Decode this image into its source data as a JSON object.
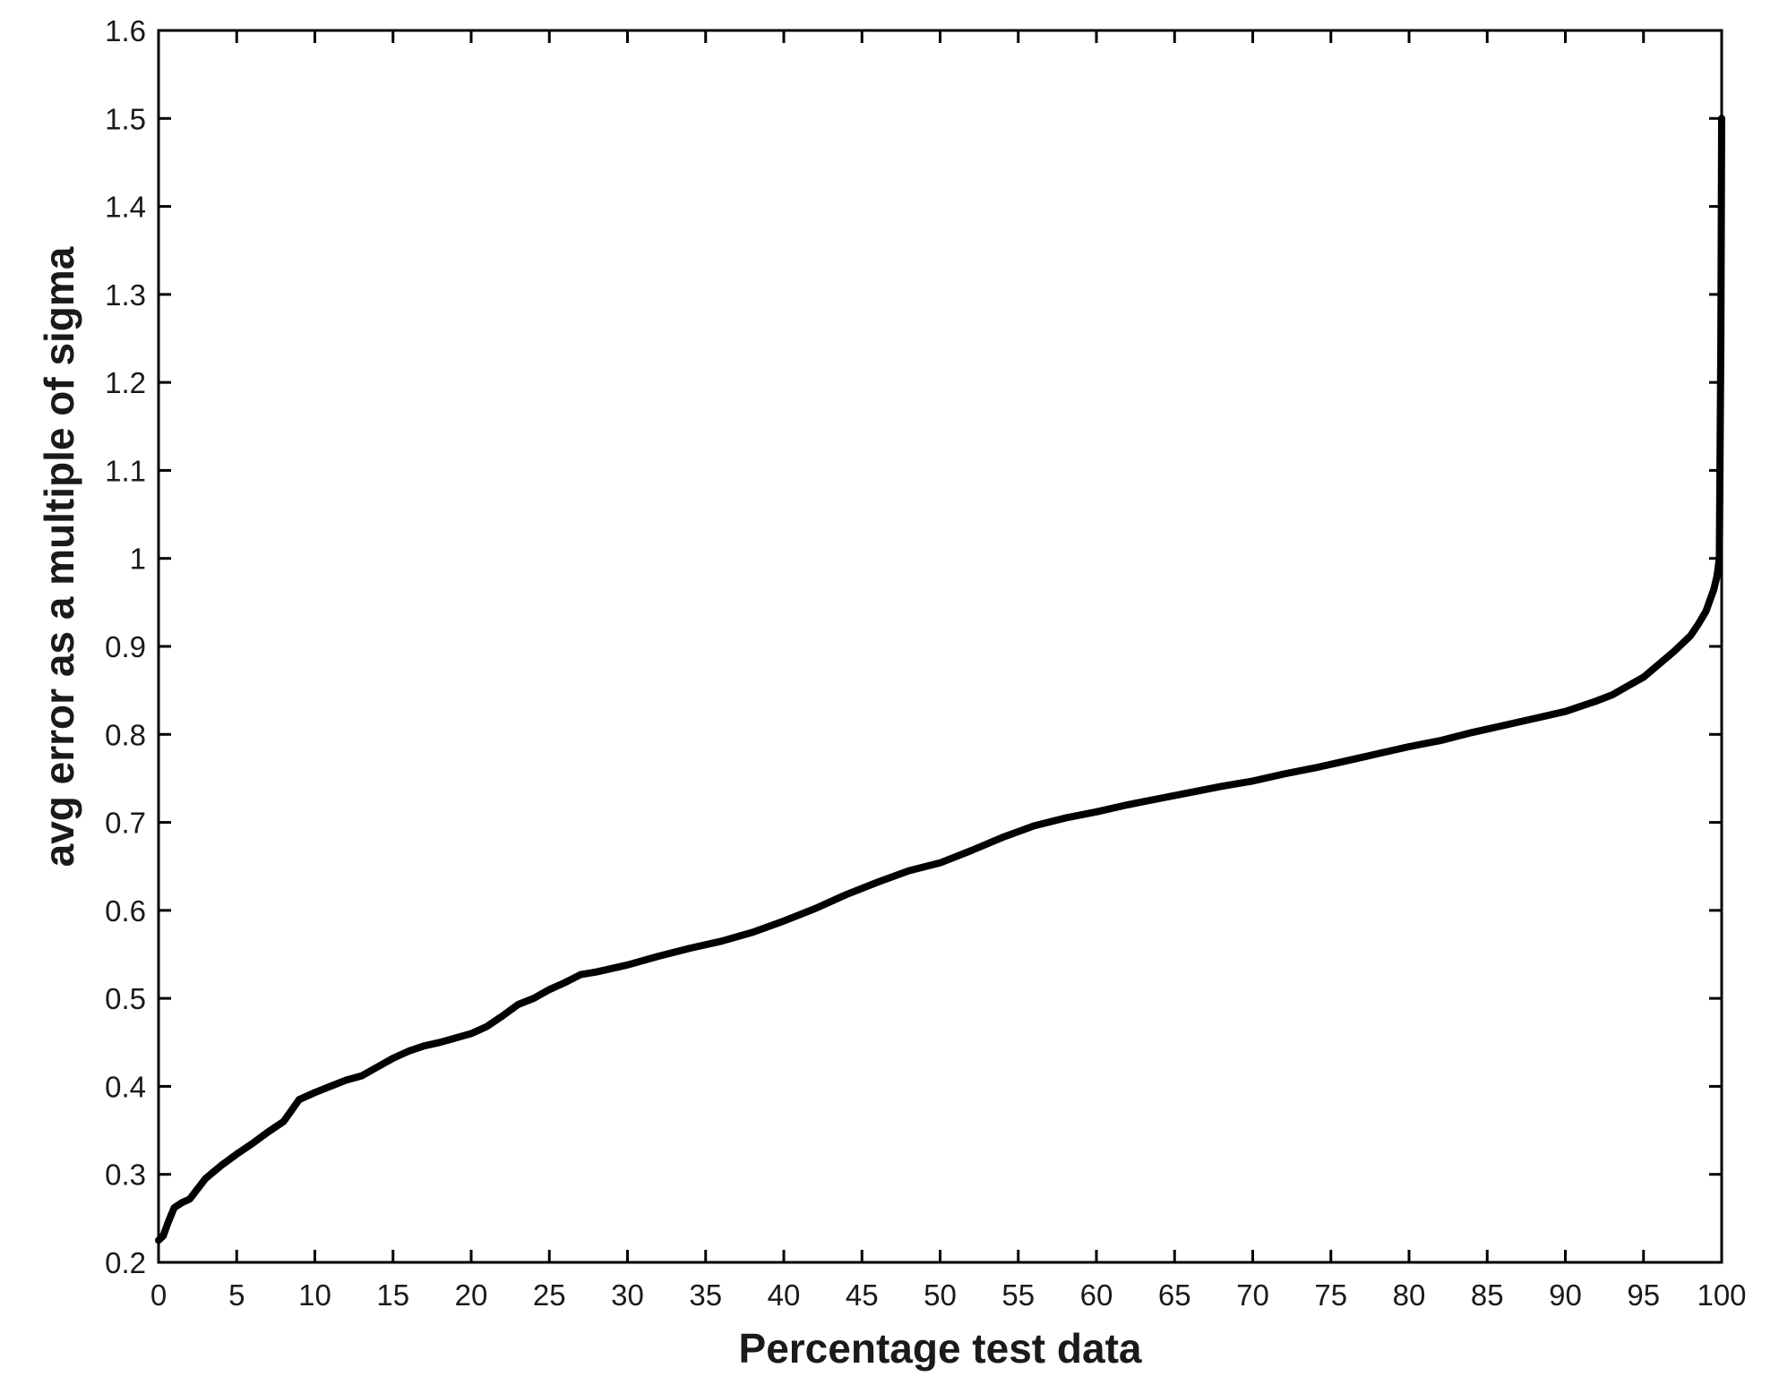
{
  "chart_data": {
    "type": "line",
    "title": "",
    "xlabel": "Percentage test data",
    "ylabel": "avg error as a multiple of sigma",
    "xlim": [
      0,
      100
    ],
    "ylim": [
      0.2,
      1.6
    ],
    "xticks": [
      0,
      5,
      10,
      15,
      20,
      25,
      30,
      35,
      40,
      45,
      50,
      55,
      60,
      65,
      70,
      75,
      80,
      85,
      90,
      95,
      100
    ],
    "yticks": [
      0.2,
      0.3,
      0.4,
      0.5,
      0.6,
      0.7,
      0.8,
      0.9,
      1,
      1.1,
      1.2,
      1.3,
      1.4,
      1.5,
      1.6
    ],
    "xtick_labels": [
      "0",
      "5",
      "10",
      "15",
      "20",
      "25",
      "30",
      "35",
      "40",
      "45",
      "50",
      "55",
      "60",
      "65",
      "70",
      "75",
      "80",
      "85",
      "90",
      "95",
      "100"
    ],
    "ytick_labels": [
      "0.2",
      "0.3",
      "0.4",
      "0.5",
      "0.6",
      "0.7",
      "0.8",
      "0.9",
      "1",
      "1.1",
      "1.2",
      "1.3",
      "1.4",
      "1.5",
      "1.6"
    ],
    "grid": false,
    "line_color": "#000000",
    "series": [
      {
        "x": [
          0,
          0.3,
          0.6,
          1,
          1.5,
          2,
          3,
          4,
          5,
          6,
          7,
          8,
          9,
          10,
          11,
          12,
          13,
          14,
          15,
          16,
          17,
          18,
          19,
          20,
          21,
          22,
          23,
          24,
          25,
          26,
          27,
          28,
          30,
          32,
          34,
          36,
          38,
          40,
          42,
          44,
          46,
          48,
          50,
          52,
          54,
          56,
          58,
          60,
          62,
          64,
          66,
          68,
          70,
          72,
          74,
          76,
          78,
          80,
          82,
          84,
          86,
          88,
          90,
          92,
          93,
          94,
          95,
          96,
          97,
          98,
          98.5,
          99,
          99.5,
          99.7,
          99.85,
          99.95,
          100
        ],
        "y": [
          0.225,
          0.23,
          0.245,
          0.262,
          0.268,
          0.272,
          0.295,
          0.31,
          0.323,
          0.335,
          0.348,
          0.36,
          0.385,
          0.393,
          0.4,
          0.407,
          0.412,
          0.422,
          0.432,
          0.44,
          0.446,
          0.45,
          0.455,
          0.46,
          0.468,
          0.48,
          0.493,
          0.5,
          0.51,
          0.518,
          0.527,
          0.53,
          0.538,
          0.548,
          0.557,
          0.565,
          0.575,
          0.588,
          0.602,
          0.618,
          0.632,
          0.645,
          0.654,
          0.668,
          0.683,
          0.696,
          0.705,
          0.712,
          0.72,
          0.727,
          0.734,
          0.741,
          0.747,
          0.755,
          0.762,
          0.77,
          0.778,
          0.786,
          0.793,
          0.802,
          0.81,
          0.818,
          0.826,
          0.838,
          0.845,
          0.855,
          0.865,
          0.88,
          0.895,
          0.912,
          0.925,
          0.94,
          0.965,
          0.98,
          1.0,
          1.25,
          1.5
        ]
      }
    ]
  }
}
